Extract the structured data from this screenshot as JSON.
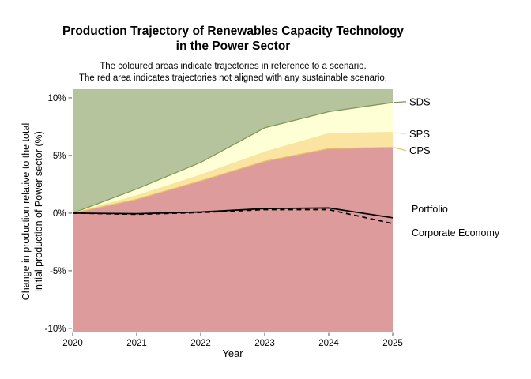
{
  "chart_data": {
    "type": "area",
    "title": "Production Trajectory of Renewables Capacity Technology\nin the Power Sector",
    "subtitle": "The coloured areas indicate trajectories in reference to a scenario.\nThe red area indicates trajectories not aligned with any sustainable scenario.",
    "xlabel": "Year",
    "ylabel": "Change in production relative to the total\ninitial production of Power sector (%)",
    "x": [
      2020,
      2021,
      2022,
      2023,
      2024,
      2025
    ],
    "x_tick_labels": [
      "2020",
      "2021",
      "2022",
      "2023",
      "2024",
      "2025"
    ],
    "y_ticks": [
      10,
      5,
      0,
      -5,
      -10
    ],
    "y_tick_labels": [
      "10%",
      "5%",
      "0%",
      "-5%",
      "-10%"
    ],
    "xlim": [
      2020,
      2025
    ],
    "ylim": [
      -10.35,
      10.75
    ],
    "grid": false,
    "legend_position": "right-annotations",
    "below_area_fill": "#dd9b9b",
    "below_area_meaning": "trajectories not aligned with any sustainable scenario",
    "series": [
      {
        "name": "SDS",
        "label": "SDS",
        "kind": "boundary",
        "area_fill": "#b5c49c",
        "line_color": "#7d9a5c",
        "values": [
          0,
          2.1,
          4.4,
          7.4,
          8.8,
          9.6
        ]
      },
      {
        "name": "SPS",
        "label": "SPS",
        "kind": "boundary",
        "area_fill": "#feffd4",
        "line_color": "#f0e8a4",
        "values": [
          0,
          1.5,
          3.3,
          5.3,
          6.9,
          7.0
        ]
      },
      {
        "name": "CPS",
        "label": "CPS",
        "kind": "boundary",
        "area_fill": "#fbe3a2",
        "line_color": "#e8c45f",
        "values": [
          0,
          1.2,
          2.8,
          4.5,
          5.6,
          5.7
        ]
      },
      {
        "name": "Portfolio",
        "label": "Portfolio",
        "kind": "line",
        "style": "solid",
        "color": "#000000",
        "values": [
          0,
          -0.05,
          0.1,
          0.4,
          0.45,
          -0.4
        ]
      },
      {
        "name": "Corporate Economy",
        "label": "Corporate Economy",
        "kind": "line",
        "style": "dashed",
        "color": "#000000",
        "values": [
          0,
          -0.1,
          0.05,
          0.3,
          0.3,
          -0.9
        ]
      }
    ]
  }
}
